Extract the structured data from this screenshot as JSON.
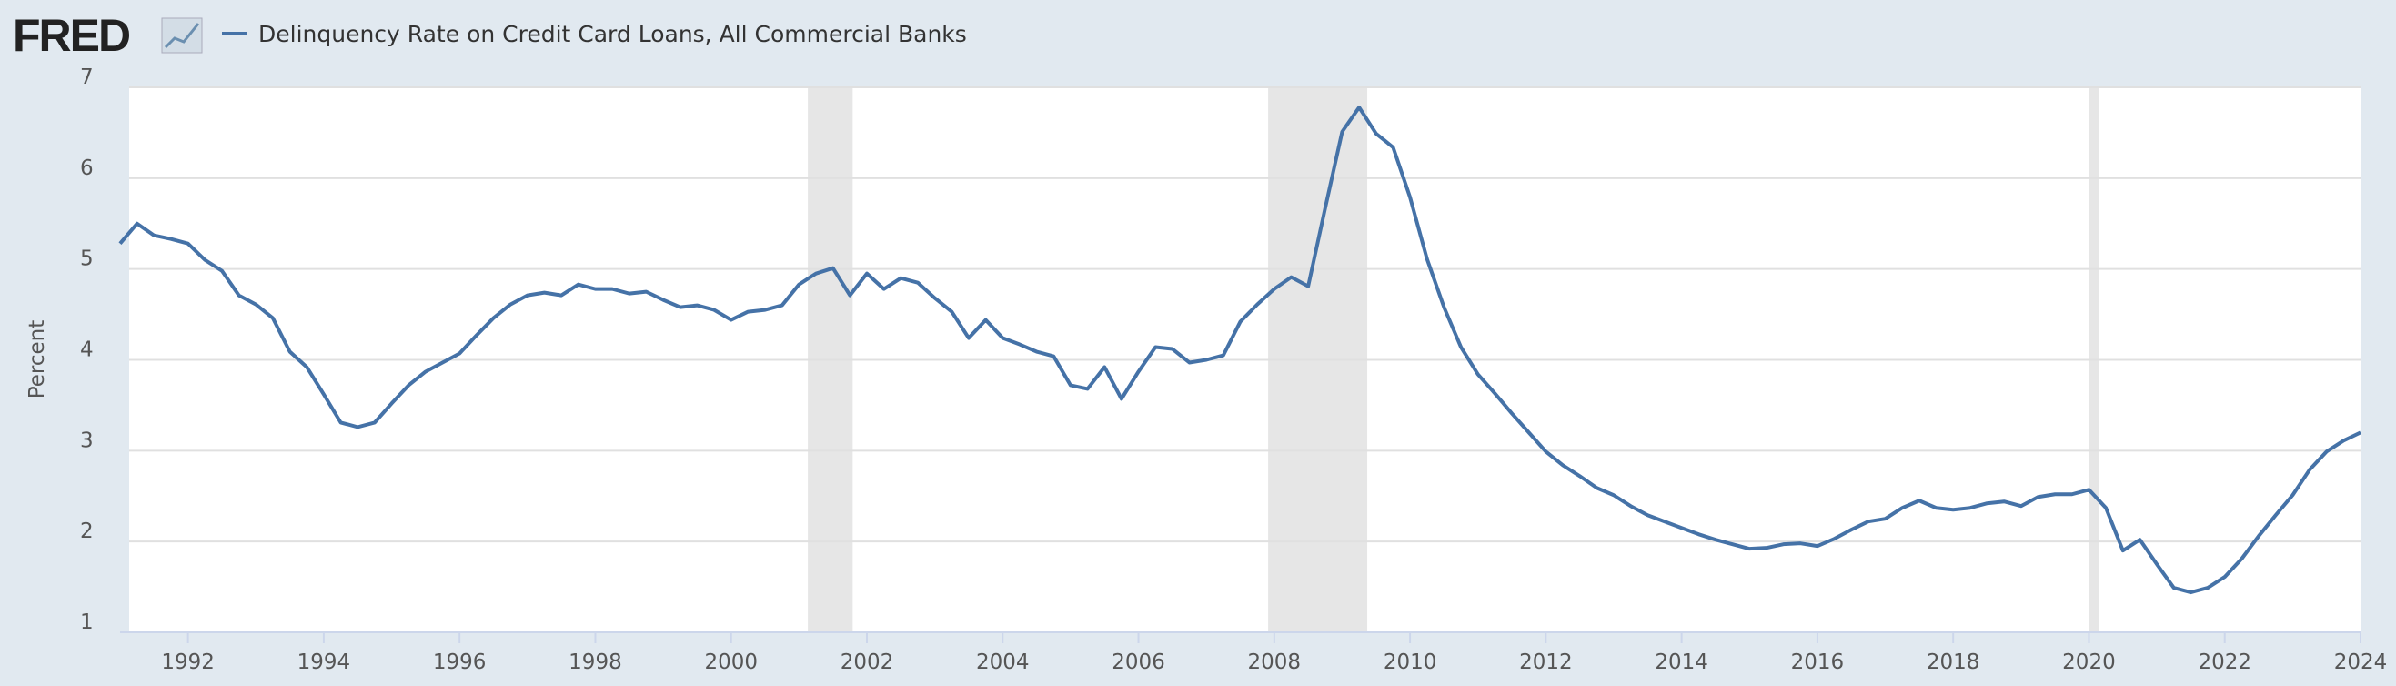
{
  "logo": "FRED",
  "chart_data": {
    "type": "line",
    "y_label": "Percent",
    "series": [
      {
        "name": "Delinquency Rate on Credit Card Loans, All Commercial Banks",
        "color": "#4572a7",
        "values": [
          5.28,
          5.5,
          5.37,
          5.33,
          5.28,
          5.1,
          4.98,
          4.71,
          4.61,
          4.46,
          4.09,
          3.92,
          3.62,
          3.31,
          3.26,
          3.31,
          3.52,
          3.72,
          3.87,
          3.97,
          4.07,
          4.27,
          4.46,
          4.61,
          4.71,
          4.74,
          4.71,
          4.83,
          4.78,
          4.78,
          4.73,
          4.75,
          4.66,
          4.58,
          4.6,
          4.55,
          4.44,
          4.53,
          4.55,
          4.6,
          4.83,
          4.95,
          5.01,
          4.71,
          4.95,
          4.78,
          4.9,
          4.85,
          4.68,
          4.53,
          4.24,
          4.44,
          4.24,
          4.17,
          4.09,
          4.04,
          3.72,
          3.68,
          3.92,
          3.57,
          3.87,
          4.14,
          4.12,
          3.97,
          4.0,
          4.05,
          4.42,
          4.61,
          4.78,
          4.91,
          4.81,
          5.67,
          6.51,
          6.78,
          6.49,
          6.34,
          5.79,
          5.11,
          4.58,
          4.14,
          3.84,
          3.63,
          3.41,
          3.2,
          2.99,
          2.84,
          2.72,
          2.59,
          2.51,
          2.39,
          2.29,
          2.22,
          2.15,
          2.08,
          2.02,
          1.97,
          1.92,
          1.93,
          1.97,
          1.98,
          1.95,
          2.03,
          2.13,
          2.22,
          2.25,
          2.37,
          2.45,
          2.37,
          2.35,
          2.37,
          2.42,
          2.44,
          2.39,
          2.49,
          2.52,
          2.52,
          2.57,
          2.37,
          1.9,
          2.02,
          1.75,
          1.49,
          1.44,
          1.49,
          1.61,
          1.81,
          2.06,
          2.29,
          2.51,
          2.79,
          2.99,
          3.11,
          3.2
        ]
      }
    ],
    "x": [
      1991,
      1991.25,
      1991.5,
      1991.75,
      1992,
      1992.25,
      1992.5,
      1992.75,
      1993,
      1993.25,
      1993.5,
      1993.75,
      1994,
      1994.25,
      1994.5,
      1994.75,
      1995,
      1995.25,
      1995.5,
      1995.75,
      1996,
      1996.25,
      1996.5,
      1996.75,
      1997,
      1997.25,
      1997.5,
      1997.75,
      1998,
      1998.25,
      1998.5,
      1998.75,
      1999,
      1999.25,
      1999.5,
      1999.75,
      2000,
      2000.25,
      2000.5,
      2000.75,
      2001,
      2001.25,
      2001.5,
      2001.75,
      2002,
      2002.25,
      2002.5,
      2002.75,
      2003,
      2003.25,
      2003.5,
      2003.75,
      2004,
      2004.25,
      2004.5,
      2004.75,
      2005,
      2005.25,
      2005.5,
      2005.75,
      2006,
      2006.25,
      2006.5,
      2006.75,
      2007,
      2007.25,
      2007.5,
      2007.75,
      2008,
      2008.25,
      2008.5,
      2008.75,
      2009,
      2009.25,
      2009.5,
      2009.75,
      2010,
      2010.25,
      2010.5,
      2010.75,
      2011,
      2011.25,
      2011.5,
      2011.75,
      2012,
      2012.25,
      2012.5,
      2012.75,
      2013,
      2013.25,
      2013.5,
      2013.75,
      2014,
      2014.25,
      2014.5,
      2014.75,
      2015,
      2015.25,
      2015.5,
      2015.75,
      2016,
      2016.25,
      2016.5,
      2016.75,
      2017,
      2017.25,
      2017.5,
      2017.75,
      2018,
      2018.25,
      2018.5,
      2018.75,
      2019,
      2019.25,
      2019.5,
      2019.75,
      2020,
      2020.25,
      2020.5,
      2020.75,
      2021,
      2021.25,
      2021.5,
      2021.75,
      2022,
      2022.25,
      2022.5,
      2022.75,
      2023,
      2023.25,
      2023.5,
      2023.75,
      2024
    ],
    "shaded_periods": [
      [
        2001.13,
        2001.79
      ],
      [
        2007.91,
        2009.37
      ],
      [
        2020.0,
        2020.15
      ]
    ],
    "shade_color": "#e6e6e6",
    "xlim": [
      1991,
      2024
    ],
    "xticks": [
      1992,
      1994,
      1996,
      1998,
      2000,
      2002,
      2004,
      2006,
      2008,
      2010,
      2012,
      2014,
      2016,
      2018,
      2020,
      2022,
      2024
    ],
    "ylim": [
      1,
      7
    ],
    "yticks": [
      1,
      2,
      3,
      4,
      5,
      6,
      7
    ],
    "grid": true
  }
}
